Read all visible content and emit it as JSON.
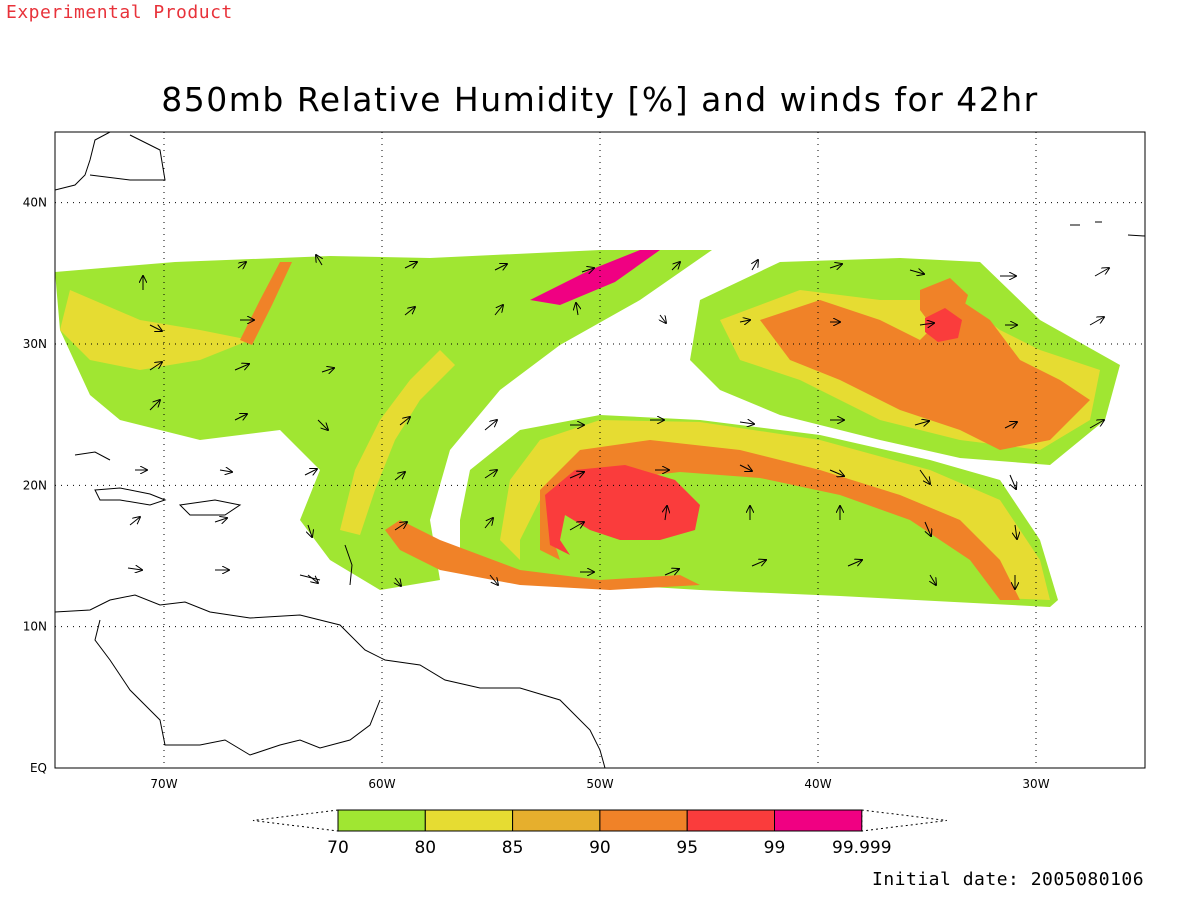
{
  "header": {
    "experimental_label": "Experimental Product",
    "title": "850mb Relative Humidity [%] and winds for 42hr"
  },
  "footer": {
    "initial_date": "Initial date: 2005080106"
  },
  "map": {
    "lon_range": [
      -75,
      -25
    ],
    "lat_range": [
      0,
      45
    ],
    "lat_ticks": [
      {
        "value": 40,
        "label": "40N"
      },
      {
        "value": 30,
        "label": "30N"
      },
      {
        "value": 20,
        "label": "20N"
      },
      {
        "value": 10,
        "label": "10N"
      },
      {
        "value": 0,
        "label": "EQ"
      }
    ],
    "lon_ticks": [
      {
        "value": -70,
        "label": "70W"
      },
      {
        "value": -60,
        "label": "60W"
      },
      {
        "value": -50,
        "label": "50W"
      },
      {
        "value": -40,
        "label": "40W"
      },
      {
        "value": -30,
        "label": "30W"
      }
    ],
    "grid": "dotted"
  },
  "colorbar": {
    "labels": [
      "70",
      "80",
      "85",
      "90",
      "95",
      "99",
      "99.999"
    ],
    "colors": [
      "#a0e632",
      "#e6dc32",
      "#e6af2d",
      "#f08228",
      "#fa3c3c",
      "#f00082"
    ]
  }
}
